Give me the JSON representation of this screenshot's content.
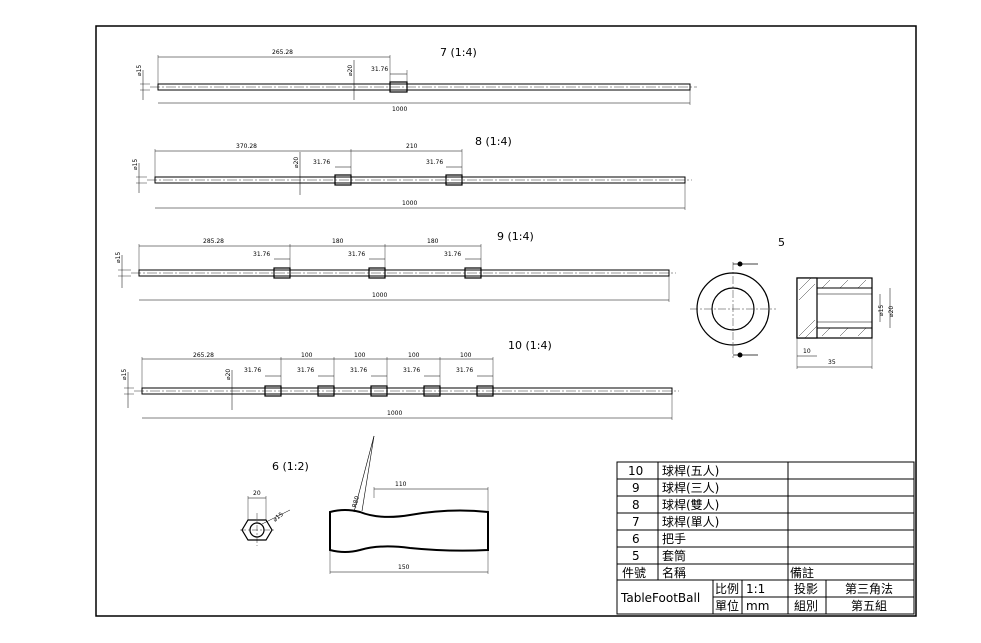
{
  "views": {
    "part7": {
      "title": "7 (1:4)",
      "dims": {
        "offset": "265.28",
        "diameter_mid": "⌀20",
        "collar": "31.76",
        "diameter": "⌀15",
        "length": "1000"
      }
    },
    "part8": {
      "title": "8 (1:4)",
      "dims": {
        "offset": "370.28",
        "diameter_mid": "⌀20",
        "collar1": "31.76",
        "gap": "210",
        "collar2": "31.76",
        "diameter": "⌀15",
        "length": "1000"
      }
    },
    "part9": {
      "title": "9 (1:4)",
      "dims": {
        "offset": "285.28",
        "gap1": "180",
        "gap2": "180",
        "collar1": "31.76",
        "collar2": "31.76",
        "collar3": "31.76",
        "diameter": "⌀15",
        "length": "1000"
      }
    },
    "part10": {
      "title": "10 (1:4)",
      "dims": {
        "offset": "265.28",
        "gap1": "100",
        "gap2": "100",
        "gap3": "100",
        "gap4": "100",
        "collar": "31.76",
        "diameter_mid": "⌀20",
        "diameter": "⌀15",
        "length": "1000"
      }
    },
    "part5": {
      "title": "5",
      "dims": {
        "inner": "⌀15",
        "outer": "⌀20",
        "flange": "10",
        "length": "35"
      }
    },
    "part6": {
      "title": "6 (1:2)",
      "dims": {
        "hex": "20",
        "bore": "⌀15",
        "radius": "R80",
        "grip": "110",
        "length": "150"
      }
    }
  },
  "parts_list": [
    {
      "no": "10",
      "name": "球桿(五人)",
      "note": ""
    },
    {
      "no": "9",
      "name": "球桿(三人)",
      "note": ""
    },
    {
      "no": "8",
      "name": "球桿(雙人)",
      "note": ""
    },
    {
      "no": "7",
      "name": "球桿(單人)",
      "note": ""
    },
    {
      "no": "6",
      "name": "把手",
      "note": ""
    },
    {
      "no": "5",
      "name": "套筒",
      "note": ""
    }
  ],
  "parts_header": {
    "no": "件號",
    "name": "名稱",
    "note": "備註"
  },
  "title_block": {
    "drawing_name": "TableFootBall",
    "scale_label": "比例",
    "scale_value": "1:1",
    "unit_label": "單位",
    "unit_value": "mm",
    "projection_label": "投影",
    "projection_value": "第三角法",
    "group_label": "組別",
    "group_value": "第五組"
  }
}
